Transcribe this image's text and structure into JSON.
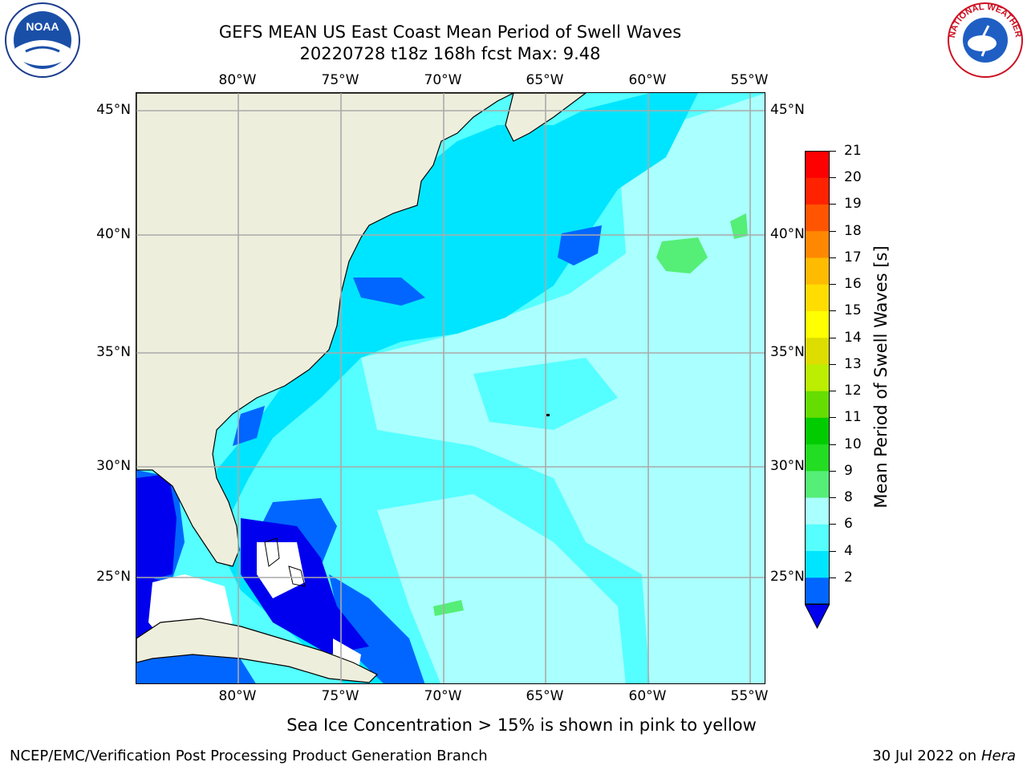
{
  "title": {
    "line1": "GEFS MEAN US East Coast Mean Period of Swell Waves",
    "line2": "20220728 t18z 168h fcst    Max: 9.48"
  },
  "map": {
    "lon_ticks": [
      "80°W",
      "75°W",
      "70°W",
      "65°W",
      "60°W",
      "55°W"
    ],
    "lat_ticks": [
      "45°N",
      "40°N",
      "35°N",
      "30°N",
      "25°N"
    ],
    "lon_range": [
      -85,
      -54.2
    ],
    "lat_range": [
      20.5,
      45.8
    ],
    "land_color": "#eeeedd",
    "missing_color": "#ffffff",
    "grid": true
  },
  "colorbar": {
    "label": "Mean Period of Swell Waves [s]",
    "ticks": [
      "21",
      "20",
      "19",
      "18",
      "17",
      "16",
      "15",
      "14",
      "13",
      "12",
      "11",
      "10",
      "9",
      "8",
      "6",
      "4",
      "2"
    ],
    "bins": [
      {
        "range": "2-4",
        "color": "#0066ff"
      },
      {
        "range": "4-6",
        "color": "#00e5ff"
      },
      {
        "range": "6-8",
        "color": "#55ffff"
      },
      {
        "range": "8-9",
        "color": "#aaffff"
      },
      {
        "range": "9-10",
        "color": "#55ee77"
      },
      {
        "range": "10-11",
        "color": "#22dd22"
      },
      {
        "range": "11-12",
        "color": "#00cc00"
      },
      {
        "range": "12-13",
        "color": "#66dd00"
      },
      {
        "range": "13-14",
        "color": "#bbee00"
      },
      {
        "range": "14-15",
        "color": "#dddd00"
      },
      {
        "range": "15-16",
        "color": "#ffff00"
      },
      {
        "range": "16-17",
        "color": "#ffdd00"
      },
      {
        "range": "17-18",
        "color": "#ffbb00"
      },
      {
        "range": "18-19",
        "color": "#ff8800"
      },
      {
        "range": "19-20",
        "color": "#ff5500"
      },
      {
        "range": "20-21",
        "color": "#ff2200"
      },
      {
        "range": ">21",
        "color": "#ff0000"
      }
    ],
    "under_color": "#0000ee"
  },
  "note": "Sea Ice Concentration > 15% is shown in pink to yellow",
  "footer": {
    "left": "NCEP/EMC/Verification Post Processing Product Generation Branch",
    "right_date": "30 Jul 2022 on ",
    "right_machine": "Hera"
  },
  "logos": {
    "noaa_text": "NOAA",
    "nws_text": "NATIONAL WEATHER SERVICE"
  }
}
